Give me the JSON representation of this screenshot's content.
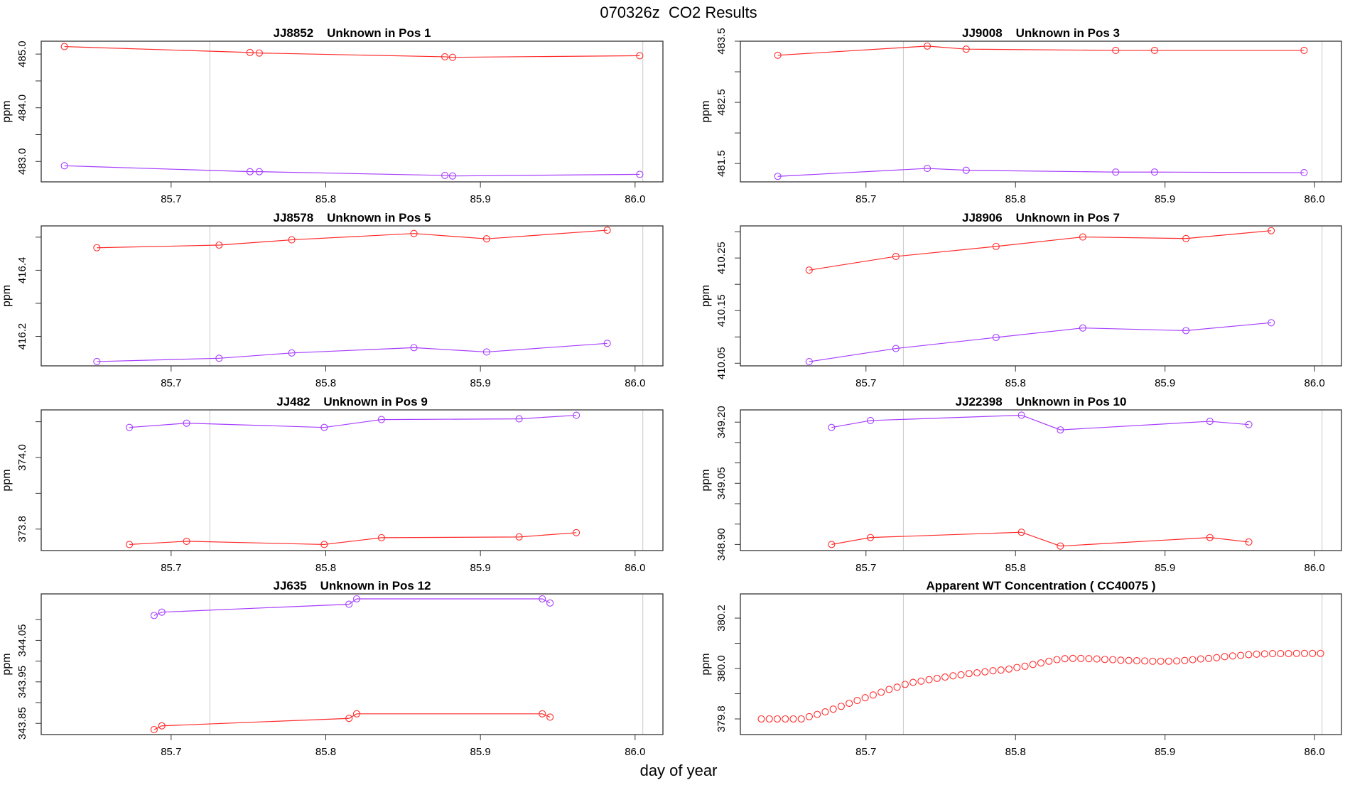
{
  "page_title": "070326z  CO2 Results",
  "x_label": "day of year",
  "colors": {
    "red": "#ff2a2a",
    "purple": "#a63dff",
    "refline": "#c8c8c8"
  },
  "chart_data": [
    {
      "type": "line",
      "title": "JJ8852    Unknown in Pos 1",
      "ylabel": "ppm",
      "xlim": [
        85.616,
        86.018
      ],
      "ylim": [
        482.62,
        485.24
      ],
      "xticks": [
        85.7,
        85.8,
        85.9,
        86.0
      ],
      "xticklabels": [
        "85.7",
        "85.8",
        "85.9",
        "86.0"
      ],
      "yticks": [
        483.0,
        483.5,
        484.0,
        484.5,
        485.0
      ],
      "yticklabels": {
        "483.0": "483.0",
        "484.0": "484.0",
        "485.0": "485.0"
      },
      "vlines": [
        85.725,
        86.005
      ],
      "x": [
        85.631,
        85.751,
        85.757,
        85.877,
        85.882,
        86.003
      ],
      "series": [
        {
          "name": "red",
          "color": "#ff2a2a",
          "values": [
            485.14,
            485.03,
            485.02,
            484.95,
            484.94,
            484.97
          ]
        },
        {
          "name": "purple",
          "color": "#a63dff",
          "values": [
            482.92,
            482.81,
            482.81,
            482.74,
            482.73,
            482.76
          ]
        }
      ]
    },
    {
      "type": "line",
      "title": "JJ9008    Unknown in Pos 3",
      "ylabel": "ppm",
      "xlim": [
        85.616,
        86.018
      ],
      "ylim": [
        481.2,
        483.5
      ],
      "xticks": [
        85.7,
        85.8,
        85.9,
        86.0
      ],
      "xticklabels": [
        "85.7",
        "85.8",
        "85.9",
        "86.0"
      ],
      "yticks": [
        481.5,
        482.0,
        482.5,
        483.0,
        483.5
      ],
      "yticklabels": {
        "481.5": "481.5",
        "482.5": "482.5",
        "483.5": "483.5"
      },
      "vlines": [
        85.725,
        86.005
      ],
      "x": [
        85.641,
        85.741,
        85.767,
        85.867,
        85.893,
        85.993
      ],
      "series": [
        {
          "name": "red",
          "color": "#ff2a2a",
          "values": [
            483.27,
            483.42,
            483.37,
            483.35,
            483.35,
            483.35
          ]
        },
        {
          "name": "purple",
          "color": "#a63dff",
          "values": [
            481.29,
            481.42,
            481.39,
            481.36,
            481.36,
            481.35
          ]
        }
      ]
    },
    {
      "type": "line",
      "title": "JJ8578    Unknown in Pos 5",
      "ylabel": "ppm",
      "xlim": [
        85.616,
        86.018
      ],
      "ylim": [
        416.111,
        416.534
      ],
      "xticks": [
        85.7,
        85.8,
        85.9,
        86.0
      ],
      "xticklabels": [
        "85.7",
        "85.8",
        "85.9",
        "86.0"
      ],
      "yticks": [
        416.2,
        416.3,
        416.4,
        416.5
      ],
      "yticklabels": {
        "416.2": "416.2",
        "416.4": "416.4"
      },
      "vlines": [
        85.725,
        86.005
      ],
      "x": [
        85.652,
        85.731,
        85.778,
        85.857,
        85.904,
        85.982
      ],
      "series": [
        {
          "name": "red",
          "color": "#ff2a2a",
          "values": [
            416.468,
            416.476,
            416.492,
            416.511,
            416.495,
            416.521
          ]
        },
        {
          "name": "purple",
          "color": "#a63dff",
          "values": [
            416.124,
            416.134,
            416.15,
            416.166,
            416.153,
            416.179
          ]
        }
      ]
    },
    {
      "type": "line",
      "title": "JJ8906    Unknown in Pos 7",
      "ylabel": "ppm",
      "xlim": [
        85.616,
        86.018
      ],
      "ylim": [
        410.045,
        410.311
      ],
      "xticks": [
        85.7,
        85.8,
        85.9,
        86.0
      ],
      "xticklabels": [
        "85.7",
        "85.8",
        "85.9",
        "86.0"
      ],
      "yticks": [
        410.05,
        410.1,
        410.15,
        410.2,
        410.25,
        410.3
      ],
      "yticklabels": {
        "410.05": "410.05",
        "410.15": "410.15",
        "410.25": "410.25"
      },
      "vlines": [
        85.725,
        86.005
      ],
      "x": [
        85.662,
        85.72,
        85.787,
        85.845,
        85.914,
        85.971
      ],
      "series": [
        {
          "name": "red",
          "color": "#ff2a2a",
          "values": [
            410.227,
            410.253,
            410.272,
            410.29,
            410.287,
            410.302
          ]
        },
        {
          "name": "purple",
          "color": "#a63dff",
          "values": [
            410.053,
            410.078,
            410.099,
            410.117,
            410.112,
            410.127
          ]
        }
      ]
    },
    {
      "type": "line",
      "title": "JJ482    Unknown in Pos 9",
      "ylabel": "ppm",
      "xlim": [
        85.616,
        86.018
      ],
      "ylim": [
        373.74,
        374.133
      ],
      "xticks": [
        85.7,
        85.8,
        85.9,
        86.0
      ],
      "xticklabels": [
        "85.7",
        "85.8",
        "85.9",
        "86.0"
      ],
      "yticks": [
        373.8,
        373.9,
        374.0,
        374.1
      ],
      "yticklabels": {
        "373.8": "373.8",
        "374.0": "374.0"
      },
      "vlines": [
        85.725,
        86.005
      ],
      "x": [
        85.673,
        85.71,
        85.799,
        85.836,
        85.925,
        85.962
      ],
      "series": [
        {
          "name": "purple",
          "color": "#a63dff",
          "values": [
            374.084,
            374.096,
            374.084,
            374.106,
            374.108,
            374.118
          ]
        },
        {
          "name": "red",
          "color": "#ff2a2a",
          "values": [
            373.757,
            373.766,
            373.757,
            373.776,
            373.778,
            373.79
          ]
        }
      ]
    },
    {
      "type": "line",
      "title": "JJ22398    Unknown in Pos 10",
      "ylabel": "ppm",
      "xlim": [
        85.616,
        86.018
      ],
      "ylim": [
        348.885,
        349.23
      ],
      "xticks": [
        85.7,
        85.8,
        85.9,
        86.0
      ],
      "xticklabels": [
        "85.7",
        "85.8",
        "85.9",
        "86.0"
      ],
      "yticks": [
        348.9,
        348.95,
        349.0,
        349.05,
        349.1,
        349.15,
        349.2
      ],
      "yticklabels": {
        "348.90": "348.90",
        "349.05": "349.05",
        "349.20": "349.20"
      },
      "vlines": [
        85.725,
        86.005
      ],
      "x": [
        85.677,
        85.703,
        85.804,
        85.83,
        85.93,
        85.956
      ],
      "series": [
        {
          "name": "purple",
          "color": "#a63dff",
          "values": [
            349.187,
            349.204,
            349.217,
            349.181,
            349.202,
            349.194
          ]
        },
        {
          "name": "red",
          "color": "#ff2a2a",
          "values": [
            348.9,
            348.917,
            348.93,
            348.896,
            348.917,
            348.906
          ]
        }
      ]
    },
    {
      "type": "line",
      "title": "JJ635    Unknown in Pos 12",
      "ylabel": "ppm",
      "xlim": [
        85.616,
        86.018
      ],
      "ylim": [
        343.823,
        344.162
      ],
      "xticks": [
        85.7,
        85.8,
        85.9,
        86.0
      ],
      "xticklabels": [
        "85.7",
        "85.8",
        "85.9",
        "86.0"
      ],
      "yticks": [
        343.85,
        343.9,
        343.95,
        344.0,
        344.05,
        344.1
      ],
      "yticklabels": {
        "343.85": "343.85",
        "343.95": "343.95",
        "344.05": "344.05"
      },
      "vlines": [
        85.725,
        86.005
      ],
      "x": [
        85.689,
        85.694,
        85.815,
        85.82,
        85.94,
        85.945
      ],
      "series": [
        {
          "name": "purple",
          "color": "#a63dff",
          "values": [
            344.11,
            344.118,
            344.137,
            344.15,
            344.15,
            344.14
          ]
        },
        {
          "name": "red",
          "color": "#ff2a2a",
          "values": [
            343.835,
            343.844,
            343.862,
            343.873,
            343.873,
            343.865
          ]
        }
      ]
    },
    {
      "type": "scatter",
      "title": "Apparent WT Concentration ( CC40075 )",
      "ylabel": "ppm",
      "xlim": [
        85.616,
        86.018
      ],
      "ylim": [
        379.738,
        380.296
      ],
      "xticks": [
        85.7,
        85.8,
        85.9,
        86.0
      ],
      "xticklabels": [
        "85.7",
        "85.8",
        "85.9",
        "86.0"
      ],
      "yticks": [
        379.8,
        379.9,
        380.0,
        380.1,
        380.2
      ],
      "yticklabels": {
        "379.8": "379.8",
        "380.0": "380.0",
        "380.2": "380.2"
      },
      "vlines": [
        85.725,
        86.005
      ],
      "x_start": 85.63,
      "x_end": 86.004,
      "series": [
        {
          "name": "red",
          "color": "#ff2a2a",
          "values": [
            379.8,
            379.8,
            379.8,
            379.8,
            379.8,
            379.8,
            379.809,
            379.818,
            379.828,
            379.839,
            379.85,
            379.862,
            379.873,
            379.884,
            379.895,
            379.906,
            379.917,
            379.926,
            379.937,
            379.945,
            379.95,
            379.956,
            379.961,
            379.966,
            379.971,
            379.975,
            379.98,
            379.983,
            379.987,
            379.991,
            379.994,
            379.998,
            380.004,
            380.009,
            380.016,
            380.022,
            380.029,
            380.035,
            380.039,
            380.04,
            380.04,
            380.039,
            380.038,
            380.036,
            380.035,
            380.033,
            380.032,
            380.031,
            380.03,
            380.029,
            380.029,
            380.029,
            380.03,
            380.032,
            380.035,
            380.038,
            380.04,
            380.043,
            380.047,
            380.05,
            380.052,
            380.055,
            380.057,
            380.058,
            380.059,
            380.059,
            380.059,
            380.06,
            380.06,
            380.06,
            380.06
          ]
        }
      ]
    }
  ]
}
